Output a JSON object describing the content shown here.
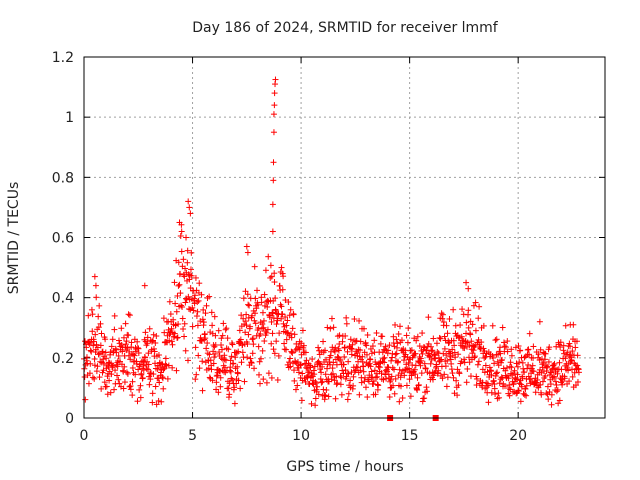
{
  "chart_data": {
    "type": "scatter",
    "title": "Day 186 of 2024, SRMTID for receiver lmmf",
    "xlabel": "GPS time / hours",
    "ylabel": "SRMTID / TECUs",
    "xlim": [
      0,
      24
    ],
    "ylim": [
      0,
      1.2
    ],
    "xticks": [
      0,
      5,
      10,
      15,
      20
    ],
    "xtick_labels": [
      "0",
      "5",
      "10",
      "15",
      "20"
    ],
    "yticks": [
      0,
      0.2,
      0.4,
      0.6,
      0.8,
      1.0,
      1.2
    ],
    "ytick_labels": [
      "0",
      "0.2",
      "0.4",
      "0.6",
      "0.8",
      "1",
      "1.2"
    ],
    "grid": true,
    "marker": "plus",
    "marker_color": "#ff0000",
    "profile_hours": [
      0.0,
      0.5,
      1.0,
      2.0,
      2.5,
      3.0,
      3.5,
      4.0,
      4.5,
      4.8,
      5.0,
      5.5,
      6.0,
      7.0,
      7.5,
      8.0,
      8.5,
      9.0,
      9.5,
      10.0,
      10.5,
      11.0,
      12.0,
      13.0,
      14.0,
      15.0,
      16.0,
      17.0,
      17.5,
      18.0,
      19.0,
      20.0,
      21.0,
      22.0,
      22.5,
      22.8
    ],
    "profile_tecu": [
      0.16,
      0.26,
      0.18,
      0.2,
      0.15,
      0.22,
      0.15,
      0.3,
      0.45,
      0.4,
      0.38,
      0.3,
      0.2,
      0.18,
      0.28,
      0.3,
      0.32,
      0.34,
      0.26,
      0.18,
      0.12,
      0.18,
      0.2,
      0.19,
      0.18,
      0.17,
      0.2,
      0.22,
      0.24,
      0.23,
      0.17,
      0.16,
      0.15,
      0.16,
      0.2,
      0.16
    ],
    "spike_points": [
      {
        "x": 8.65,
        "y": 0.47
      },
      {
        "x": 8.7,
        "y": 0.62
      },
      {
        "x": 8.7,
        "y": 0.71
      },
      {
        "x": 8.72,
        "y": 0.79
      },
      {
        "x": 8.73,
        "y": 0.85
      },
      {
        "x": 8.75,
        "y": 0.95
      },
      {
        "x": 8.75,
        "y": 1.01
      },
      {
        "x": 8.77,
        "y": 1.04
      },
      {
        "x": 8.78,
        "y": 1.08
      },
      {
        "x": 8.8,
        "y": 1.11
      },
      {
        "x": 8.82,
        "y": 1.125
      },
      {
        "x": 4.8,
        "y": 0.72
      },
      {
        "x": 4.85,
        "y": 0.7
      },
      {
        "x": 4.9,
        "y": 0.68
      },
      {
        "x": 4.4,
        "y": 0.65
      },
      {
        "x": 4.5,
        "y": 0.62
      },
      {
        "x": 4.7,
        "y": 0.6
      },
      {
        "x": 7.5,
        "y": 0.57
      },
      {
        "x": 7.55,
        "y": 0.55
      },
      {
        "x": 0.5,
        "y": 0.47
      },
      {
        "x": 0.55,
        "y": 0.44
      },
      {
        "x": 9.1,
        "y": 0.5
      },
      {
        "x": 9.15,
        "y": 0.48
      },
      {
        "x": 17.6,
        "y": 0.45
      },
      {
        "x": 17.7,
        "y": 0.43
      },
      {
        "x": 18.2,
        "y": 0.37
      },
      {
        "x": 2.8,
        "y": 0.44
      },
      {
        "x": 21.0,
        "y": 0.32
      },
      {
        "x": 22.4,
        "y": 0.31
      }
    ],
    "square_markers": [
      {
        "x": 14.1,
        "y": 0.0
      },
      {
        "x": 16.2,
        "y": 0.0
      }
    ]
  }
}
